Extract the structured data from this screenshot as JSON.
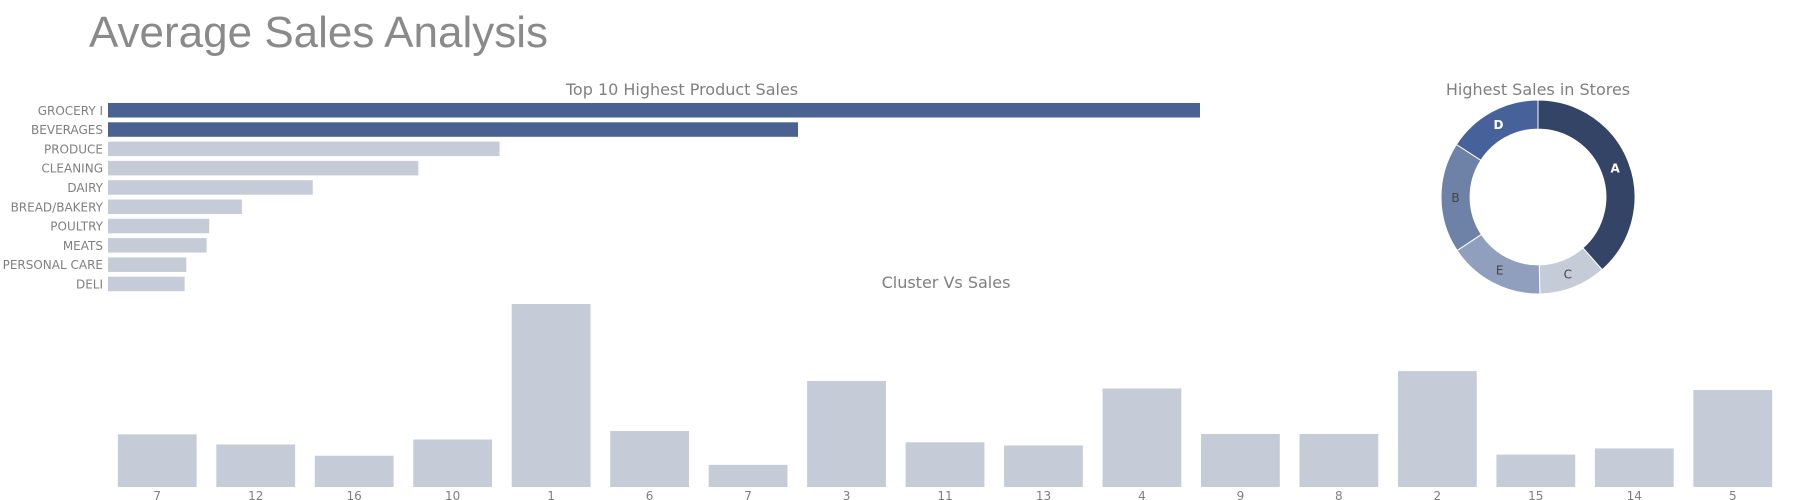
{
  "page": {
    "title": "Average Sales Analysis"
  },
  "chart_data": [
    {
      "type": "bar",
      "orientation": "horizontal",
      "title": "Top 10 Highest Product Sales",
      "categories": [
        "GROCERY I",
        "BEVERAGES",
        "PRODUCE",
        "CLEANING",
        "DAIRY",
        "BREAD/BAKERY",
        "POULTRY",
        "MEATS",
        "PERSONAL CARE",
        "DELI"
      ],
      "values": [
        3776,
        2386,
        1354,
        1073,
        708,
        463,
        350,
        341,
        271,
        265
      ],
      "xlim": [
        0,
        4000
      ],
      "colors": [
        "#4a6291",
        "#4a6291",
        "#c5cbd7",
        "#c5cbd7",
        "#c5cbd7",
        "#c5cbd7",
        "#c5cbd7",
        "#c5cbd7",
        "#c5cbd7",
        "#c5cbd7"
      ]
    },
    {
      "type": "pie",
      "hole": 0.7,
      "title": "Highest Sales in Stores",
      "labels": [
        "A",
        "C",
        "E",
        "B",
        "D"
      ],
      "values": [
        38.5,
        11.2,
        16.0,
        18.4,
        15.9
      ],
      "colors": [
        "#334466",
        "#c5cbd7",
        "#8f9fbd",
        "#6e82a8",
        "#47619a"
      ],
      "label_colors": [
        "#ffffff",
        "#444444",
        "#444444",
        "#444444",
        "#ffffff"
      ],
      "direction": "clockwise",
      "start": "top"
    },
    {
      "type": "bar",
      "orientation": "vertical",
      "title": "Cluster Vs Sales",
      "categories": [
        "7",
        "12",
        "16",
        "10",
        "1",
        "6",
        "7",
        "3",
        "11",
        "13",
        "4",
        "9",
        "8",
        "2",
        "15",
        "14",
        "5"
      ],
      "values": [
        266,
        215,
        158,
        240,
        925,
        283,
        112,
        536,
        226,
        210,
        498,
        268,
        268,
        586,
        164,
        195,
        490
      ],
      "ylim": [
        0,
        925
      ],
      "color": "#c5cbd7"
    }
  ]
}
